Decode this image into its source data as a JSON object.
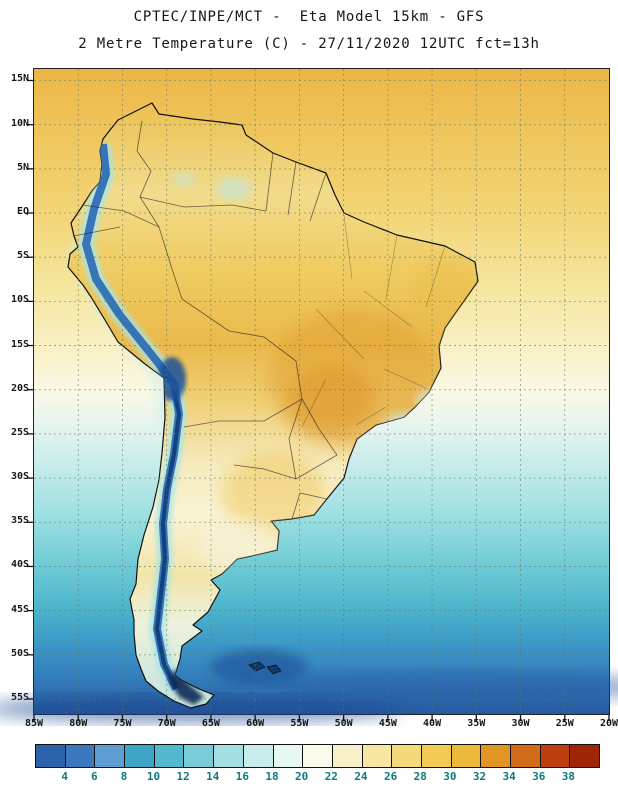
{
  "header": {
    "line1": "CPTEC/INPE/MCT -  Eta Model 15km - GFS",
    "line2": "2 Metre Temperature (C) - 27/11/2020 12UTC fct=13h"
  },
  "map": {
    "lat_labels": [
      "15N",
      "10N",
      "5N",
      "EQ",
      "5S",
      "10S",
      "15S",
      "20S",
      "25S",
      "30S",
      "35S",
      "40S",
      "45S",
      "50S",
      "55S"
    ],
    "lon_labels": [
      "85W",
      "80W",
      "75W",
      "70W",
      "65W",
      "60W",
      "55W",
      "50W",
      "45W",
      "40W",
      "35W",
      "30W",
      "25W",
      "20W"
    ]
  },
  "colorbar": {
    "unit": "C",
    "ticks": [
      "4",
      "6",
      "8",
      "10",
      "12",
      "14",
      "16",
      "18",
      "20",
      "22",
      "24",
      "26",
      "28",
      "30",
      "32",
      "34",
      "36",
      "38"
    ],
    "colors": [
      "#2B62A9",
      "#3B79BE",
      "#5E9CD2",
      "#3FA5C6",
      "#55B9CD",
      "#79CCD6",
      "#A3DEE2",
      "#C9EDEC",
      "#E7F7F2",
      "#FCFAEB",
      "#F9F1C9",
      "#F7E7A2",
      "#F4DA7A",
      "#F1CB56",
      "#ECB93A",
      "#E39426",
      "#D26C1A",
      "#BD3F0F",
      "#9E2506"
    ]
  },
  "chart_data": {
    "type": "heatmap",
    "title": "2 Metre Temperature (C)",
    "source": "CPTEC/INPE/MCT",
    "model": "Eta Model 15km - GFS",
    "valid": "27/11/2020 12UTC fct=13h",
    "lon_range": [
      "85W",
      "20W"
    ],
    "lat_range": [
      "15N",
      "55S"
    ],
    "scale_c": [
      4,
      6,
      8,
      10,
      12,
      14,
      16,
      18,
      20,
      22,
      24,
      26,
      28,
      30,
      32,
      34,
      36,
      38
    ],
    "legend_position": "bottom",
    "grid": "dashed 5-degree graticule"
  }
}
